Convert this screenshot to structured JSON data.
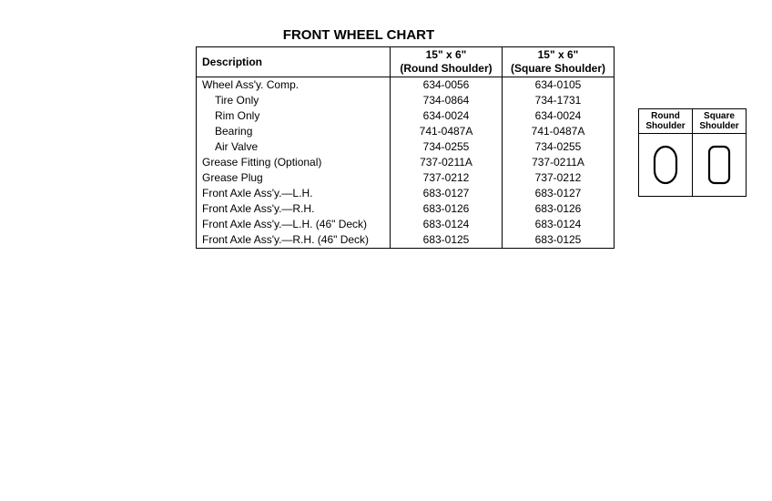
{
  "title": "FRONT WHEEL CHART",
  "table": {
    "headers": {
      "desc": "Description",
      "col1_line1": "15\" x 6\"",
      "col1_line2": "(Round Shoulder)",
      "col2_line1": "15\" x 6\"",
      "col2_line2": "(Square Shoulder)"
    },
    "rows": [
      {
        "desc": "Wheel Ass'y. Comp.",
        "indent": false,
        "c1": "634-0056",
        "c2": "634-0105"
      },
      {
        "desc": "Tire Only",
        "indent": true,
        "c1": "734-0864",
        "c2": "734-1731"
      },
      {
        "desc": "Rim Only",
        "indent": true,
        "c1": "634-0024",
        "c2": "634-0024"
      },
      {
        "desc": "Bearing",
        "indent": true,
        "c1": "741-0487A",
        "c2": "741-0487A"
      },
      {
        "desc": "Air Valve",
        "indent": true,
        "c1": "734-0255",
        "c2": "734-0255"
      },
      {
        "desc": "Grease Fitting (Optional)",
        "indent": false,
        "c1": "737-0211A",
        "c2": "737-0211A"
      },
      {
        "desc": "Grease Plug",
        "indent": false,
        "c1": "737-0212",
        "c2": "737-0212"
      },
      {
        "desc": "Front Axle Ass'y.—L.H.",
        "indent": false,
        "c1": "683-0127",
        "c2": "683-0127"
      },
      {
        "desc": "Front Axle Ass'y.—R.H.",
        "indent": false,
        "c1": "683-0126",
        "c2": "683-0126"
      },
      {
        "desc": "Front Axle Ass'y.—L.H. (46\" Deck)",
        "indent": false,
        "c1": "683-0124",
        "c2": "683-0124"
      },
      {
        "desc": "Front Axle Ass'y.—R.H. (46\" Deck)",
        "indent": false,
        "c1": "683-0125",
        "c2": "683-0125"
      }
    ]
  },
  "legend": {
    "col1_line1": "Round",
    "col1_line2": "Shoulder",
    "col2_line1": "Square",
    "col2_line2": "Shoulder"
  },
  "colors": {
    "stroke": "#000000",
    "bg": "#ffffff"
  }
}
